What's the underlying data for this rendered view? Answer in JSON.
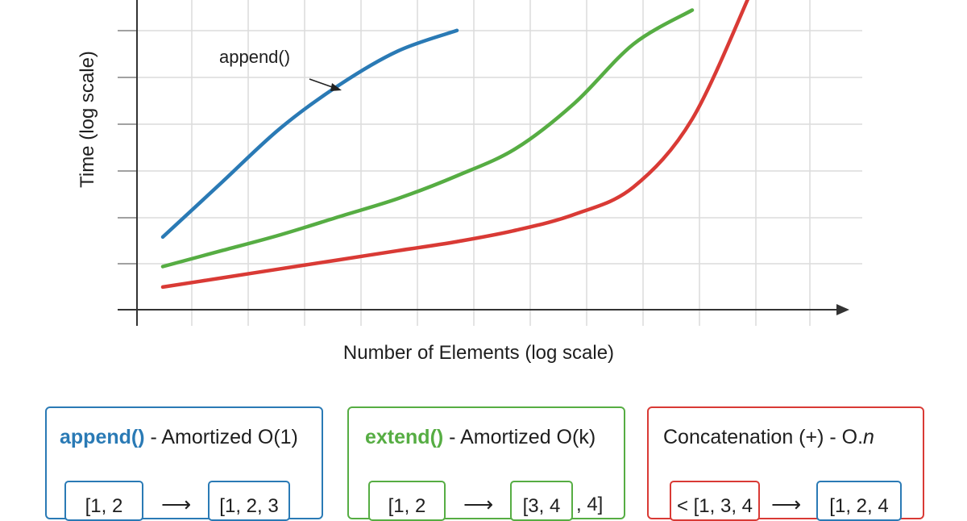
{
  "chart_data": {
    "type": "line",
    "xlabel": "Number of Elements (log scale)",
    "ylabel": "Time (log scale)",
    "x_scale": "log",
    "y_scale": "log",
    "grid": true,
    "x": [
      1,
      2,
      3,
      4,
      5,
      6,
      7,
      8,
      9,
      10,
      11,
      12
    ],
    "series": [
      {
        "color": "#2a7ab5",
        "values": [
          1.6,
          2.8,
          4.0,
          4.95,
          5.7,
          6.15,
          null,
          null,
          null,
          null,
          null,
          null
        ]
      },
      {
        "color": "#56ad43",
        "values": [
          0.95,
          1.3,
          1.65,
          2.05,
          2.45,
          2.95,
          3.55,
          4.55,
          5.85,
          6.6,
          null,
          null
        ]
      },
      {
        "color": "#d93a35",
        "values": [
          0.5,
          0.7,
          0.9,
          1.1,
          1.3,
          1.5,
          1.75,
          2.1,
          2.7,
          4.2,
          7.0,
          null
        ]
      }
    ],
    "annotations": [
      {
        "text": "append()",
        "target_series": 0
      }
    ]
  },
  "cards": [
    {
      "fn": "append()",
      "rest": " - Amortized O(1)",
      "color": "#2a7ab5",
      "left_chip": "[1, 2",
      "arrow": "⟶",
      "right_chip": "[1, 2, 3"
    },
    {
      "fn": "extend()",
      "rest": " - Amortized O(k)",
      "color": "#56ad43",
      "left_chip": "[1, 2",
      "arrow": "⟶",
      "right_chip": "[3, 4",
      "tail": ", 4]"
    },
    {
      "title": "Concatenation (+) - O.",
      "title_italic": "n",
      "color": "#d93a35",
      "left_chip": "< [1, 3, 4",
      "arrow": "⟶",
      "right_chip": "[1, 2, 4"
    }
  ]
}
